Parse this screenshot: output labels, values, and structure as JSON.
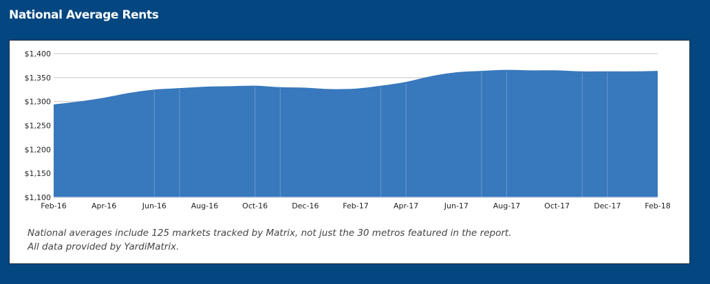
{
  "header": {
    "title": "National Average Rents"
  },
  "chart_data": {
    "type": "area",
    "title": "",
    "xlabel": "",
    "ylabel": "",
    "ylim": [
      1100,
      1400
    ],
    "y_ticks": [
      "$1,100",
      "$1,150",
      "$1,200",
      "$1,250",
      "$1,300",
      "$1,350",
      "$1,400"
    ],
    "y_tick_values": [
      1100,
      1150,
      1200,
      1250,
      1300,
      1350,
      1400
    ],
    "x_tick_labels": [
      "Feb-16",
      "Apr-16",
      "Jun-16",
      "Aug-16",
      "Oct-16",
      "Dec-16",
      "Feb-17",
      "Apr-17",
      "Jun-17",
      "Aug-17",
      "Oct-17",
      "Dec-17",
      "Feb-18"
    ],
    "x": [
      "Feb-16",
      "Mar-16",
      "Apr-16",
      "May-16",
      "Jun-16",
      "Jul-16",
      "Aug-16",
      "Sep-16",
      "Oct-16",
      "Nov-16",
      "Dec-16",
      "Jan-17",
      "Feb-17",
      "Mar-17",
      "Apr-17",
      "May-17",
      "Jun-17",
      "Jul-17",
      "Aug-17",
      "Sep-17",
      "Oct-17",
      "Nov-17",
      "Dec-17",
      "Jan-18",
      "Feb-18"
    ],
    "values": [
      1294,
      1300,
      1308,
      1318,
      1325,
      1328,
      1331,
      1332,
      1333,
      1330,
      1329,
      1326,
      1327,
      1333,
      1341,
      1353,
      1361,
      1364,
      1366,
      1365,
      1365,
      1363,
      1363,
      1363,
      1364
    ],
    "grid": "horizontal",
    "color": "#3878bc"
  },
  "footnote": {
    "line1": "National averages include 125 markets tracked by Matrix, not just the 30 metros featured in the report.",
    "line2": "All data provided by YardiMatrix."
  }
}
